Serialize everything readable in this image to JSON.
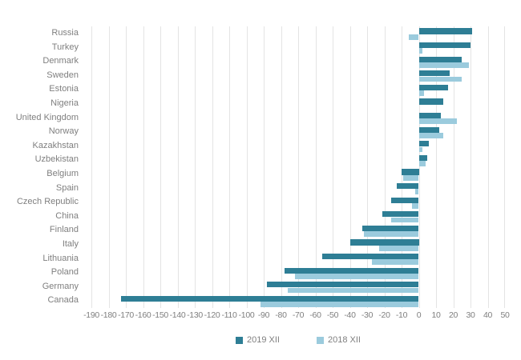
{
  "chart_data": {
    "type": "bar",
    "orientation": "horizontal",
    "title": "",
    "xlabel": "",
    "ylabel": "",
    "xlim": [
      -190,
      50
    ],
    "x_ticks": [
      -190,
      -180,
      -170,
      -160,
      -150,
      -140,
      -130,
      -120,
      -110,
      -100,
      -90,
      -80,
      -70,
      -60,
      -50,
      -40,
      -30,
      -20,
      -10,
      0,
      10,
      20,
      30,
      40,
      50
    ],
    "grid": true,
    "legend_position": "bottom",
    "categories": [
      "Russia",
      "Turkey",
      "Denmark",
      "Sweden",
      "Estonia",
      "Nigeria",
      "United Kingdom",
      "Norway",
      "Kazakhstan",
      "Uzbekistan",
      "Belgium",
      "Spain",
      "Czech Republic",
      "China",
      "Finland",
      "Italy",
      "Lithuania",
      "Poland",
      "Germany",
      "Canada"
    ],
    "series": [
      {
        "name": "2019 XII",
        "color": "#2e7e95",
        "values": [
          31,
          30,
          25,
          18,
          17,
          14,
          13,
          12,
          6,
          5,
          -10,
          -13,
          -16,
          -21,
          -33,
          -40,
          -56,
          -78,
          -88,
          -173
        ]
      },
      {
        "name": "2018 XII",
        "color": "#9bcbdd",
        "values": [
          -6,
          2,
          29,
          25,
          3,
          0,
          22,
          14,
          2,
          4,
          -9,
          -2,
          -4,
          -16,
          -32,
          -23,
          -27,
          -72,
          -76,
          -92
        ]
      }
    ]
  },
  "styles": {
    "background": "#ffffff",
    "grid_color": "#e4e4e4",
    "label_color": "#7f7f7f"
  }
}
